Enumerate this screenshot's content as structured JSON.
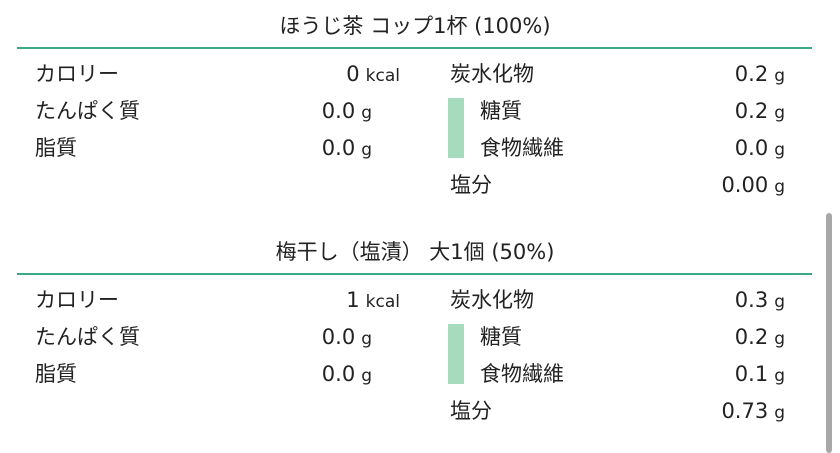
{
  "accent_color": "#3aa987",
  "sections": [
    {
      "title": "ほうじ茶 コップ1杯 (100%)",
      "left": [
        {
          "label": "カロリー",
          "value": "0",
          "unit": "kcal"
        },
        {
          "label": "たんぱく質",
          "value": "0.0",
          "unit": "g"
        },
        {
          "label": "脂質",
          "value": "0.0",
          "unit": "g"
        }
      ],
      "right": [
        {
          "label": "炭水化物",
          "value": "0.2",
          "unit": "g"
        },
        {
          "label": "糖質",
          "value": "0.2",
          "unit": "g"
        },
        {
          "label": "食物繊維",
          "value": "0.0",
          "unit": "g"
        },
        {
          "label": "塩分",
          "value": "0.00",
          "unit": "g"
        }
      ]
    },
    {
      "title": "梅干し（塩漬） 大1個 (50%)",
      "left": [
        {
          "label": "カロリー",
          "value": "1",
          "unit": "kcal"
        },
        {
          "label": "たんぱく質",
          "value": "0.0",
          "unit": "g"
        },
        {
          "label": "脂質",
          "value": "0.0",
          "unit": "g"
        }
      ],
      "right": [
        {
          "label": "炭水化物",
          "value": "0.3",
          "unit": "g"
        },
        {
          "label": "糖質",
          "value": "0.2",
          "unit": "g"
        },
        {
          "label": "食物繊維",
          "value": "0.1",
          "unit": "g"
        },
        {
          "label": "塩分",
          "value": "0.73",
          "unit": "g"
        }
      ]
    }
  ]
}
